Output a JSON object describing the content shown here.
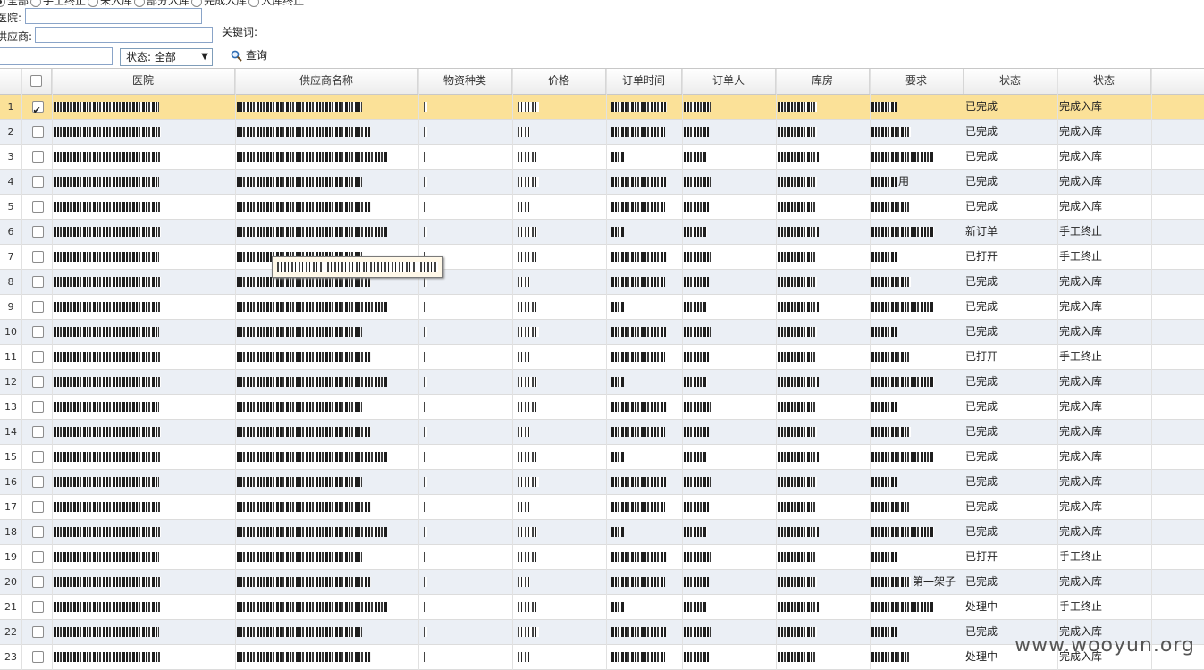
{
  "filters": {
    "radios": [
      {
        "label": "全部",
        "checked": true
      },
      {
        "label": "手工终止",
        "checked": false
      },
      {
        "label": "未入库",
        "checked": false
      },
      {
        "label": "部分入库",
        "checked": false
      },
      {
        "label": "完成入库",
        "checked": false
      },
      {
        "label": "入库终止",
        "checked": false
      }
    ],
    "hospital_label": "医院:",
    "supplier_label": "供应商:",
    "keyword_label": "关键词:",
    "status_select": "状态: 全部",
    "query_button": "查询"
  },
  "table": {
    "headers": [
      "医院",
      "供应商名称",
      "物资种类",
      "价格",
      "订单时间",
      "订单人",
      "库房",
      "要求",
      "状态",
      "状态"
    ],
    "rows": [
      {
        "n": "1",
        "checked": true,
        "status": "已完成",
        "stock": "完成入库"
      },
      {
        "n": "2",
        "checked": false,
        "status": "已完成",
        "stock": "完成入库"
      },
      {
        "n": "3",
        "checked": false,
        "status": "已完成",
        "stock": "完成入库"
      },
      {
        "n": "4",
        "checked": false,
        "status": "已完成",
        "stock": "完成入库",
        "req_suffix": "用"
      },
      {
        "n": "5",
        "checked": false,
        "status": "已完成",
        "stock": "完成入库"
      },
      {
        "n": "6",
        "checked": false,
        "status": "新订单",
        "stock": "手工终止"
      },
      {
        "n": "7",
        "checked": false,
        "status": "已打开",
        "stock": "手工终止"
      },
      {
        "n": "8",
        "checked": false,
        "status": "已完成",
        "stock": "完成入库"
      },
      {
        "n": "9",
        "checked": false,
        "status": "已完成",
        "stock": "完成入库"
      },
      {
        "n": "10",
        "checked": false,
        "status": "已完成",
        "stock": "完成入库"
      },
      {
        "n": "11",
        "checked": false,
        "status": "已打开",
        "stock": "手工终止"
      },
      {
        "n": "12",
        "checked": false,
        "status": "已完成",
        "stock": "完成入库"
      },
      {
        "n": "13",
        "checked": false,
        "status": "已完成",
        "stock": "完成入库"
      },
      {
        "n": "14",
        "checked": false,
        "status": "已完成",
        "stock": "完成入库"
      },
      {
        "n": "15",
        "checked": false,
        "status": "已完成",
        "stock": "完成入库"
      },
      {
        "n": "16",
        "checked": false,
        "status": "已完成",
        "stock": "完成入库"
      },
      {
        "n": "17",
        "checked": false,
        "status": "已完成",
        "stock": "完成入库"
      },
      {
        "n": "18",
        "checked": false,
        "status": "已完成",
        "stock": "完成入库"
      },
      {
        "n": "19",
        "checked": false,
        "status": "已打开",
        "stock": "手工终止"
      },
      {
        "n": "20",
        "checked": false,
        "status": "已完成",
        "stock": "完成入库",
        "req_suffix": "第一架子"
      },
      {
        "n": "21",
        "checked": false,
        "status": "处理中",
        "stock": "手工终止"
      },
      {
        "n": "22",
        "checked": false,
        "status": "已完成",
        "stock": "完成入库"
      },
      {
        "n": "23",
        "checked": false,
        "status": "处理中",
        "stock": "完成入库"
      }
    ]
  },
  "watermark": "www.wooyun.org"
}
